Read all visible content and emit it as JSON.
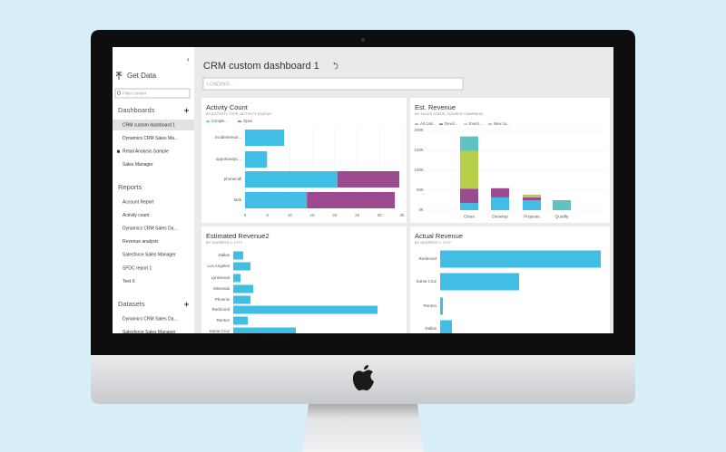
{
  "sidebar": {
    "get_data": "Get Data",
    "filter_placeholder": "Filter content",
    "sections": [
      {
        "title": "Dashboards",
        "items": [
          "CRM custom dashboard 1",
          "Dynamics CRM Sales Ma...",
          "Retail Analysis Sample",
          "Sales Manager"
        ]
      },
      {
        "title": "Reports",
        "items": [
          "Account Report",
          "Activity count",
          "Dynamics CRM Sales Da...",
          "Revenue analysis",
          "Salesforce Sales Manager",
          "SFDC report 1",
          "Test X"
        ]
      },
      {
        "title": "Datasets",
        "items": [
          "Dynamics CRM Sales Da...",
          "Salesforce Sales Manager"
        ]
      }
    ]
  },
  "header": {
    "title": "CRM custom dashboard 1",
    "loading": "LOADING..."
  },
  "chart_data": [
    {
      "type": "hbar",
      "title": "Activity Count",
      "subtitle": "BY ACTIVITY TYPE, ACTIVITY STATUS",
      "categories": [
        "incidentresol...",
        "opportunityc...",
        "phonecall",
        "task"
      ],
      "series": [
        {
          "name": "Comple...",
          "color": "#41bee6",
          "values": [
            8.7,
            4.9,
            20.6,
            13.8
          ]
        },
        {
          "name": "Open",
          "color": "#9b4a8f",
          "values": [
            0,
            0,
            13.8,
            19.6
          ]
        }
      ],
      "xlim": [
        0,
        35
      ],
      "xticks": [
        0,
        5,
        10,
        15,
        20,
        25,
        30,
        35
      ],
      "grid": true
    },
    {
      "type": "bar",
      "title": "Est. Revenue",
      "subtitle": "BY SALES STAGE, SOURCE CAMPAIGN",
      "categories": [
        "Close",
        "Develop",
        "Propose",
        "Qualify"
      ],
      "series": [
        {
          "name": "Ad cam...",
          "color": "#41bee6",
          "values": [
            18000,
            32000,
            25000,
            0
          ]
        },
        {
          "name": "Devel...",
          "color": "#9b4a8f",
          "values": [
            36000,
            23000,
            7000,
            0
          ]
        },
        {
          "name": "Event...",
          "color": "#b7d04c",
          "values": [
            95000,
            0,
            7000,
            0
          ]
        },
        {
          "name": "New cu...",
          "color": "#5fc3c6",
          "values": [
            36000,
            0,
            0,
            25000
          ]
        }
      ],
      "ylim": [
        0,
        200000
      ],
      "yticks": [
        {
          "value": 0,
          "label": "0K"
        },
        {
          "value": 50000,
          "label": "50K"
        },
        {
          "value": 100000,
          "label": "100K"
        },
        {
          "value": 150000,
          "label": "150K"
        },
        {
          "value": 200000,
          "label": "200K"
        }
      ],
      "grid": true
    },
    {
      "type": "hbar",
      "title": "Estimated Revenue2",
      "subtitle": "BY ADDRESS 1: CITY",
      "categories": [
        "Dallas",
        "Los Angeles",
        "Lynnwood",
        "Missoula",
        "Phoenix",
        "Redmond",
        "Renton",
        "Santa Cruz"
      ],
      "values": [
        11,
        19,
        8,
        22,
        19,
        159,
        16,
        69
      ],
      "color": "#41bee6",
      "xlim": [
        0,
        186
      ]
    },
    {
      "type": "hbar",
      "title": "Actual Revenue",
      "subtitle": "BY ADDRESS 1: CITY",
      "categories": [
        "Redmond",
        "Santa Cruz",
        "Renton",
        "Dallas"
      ],
      "values": [
        177,
        87,
        3,
        13
      ],
      "color": "#41bee6",
      "xlim": [
        0,
        188
      ]
    }
  ]
}
